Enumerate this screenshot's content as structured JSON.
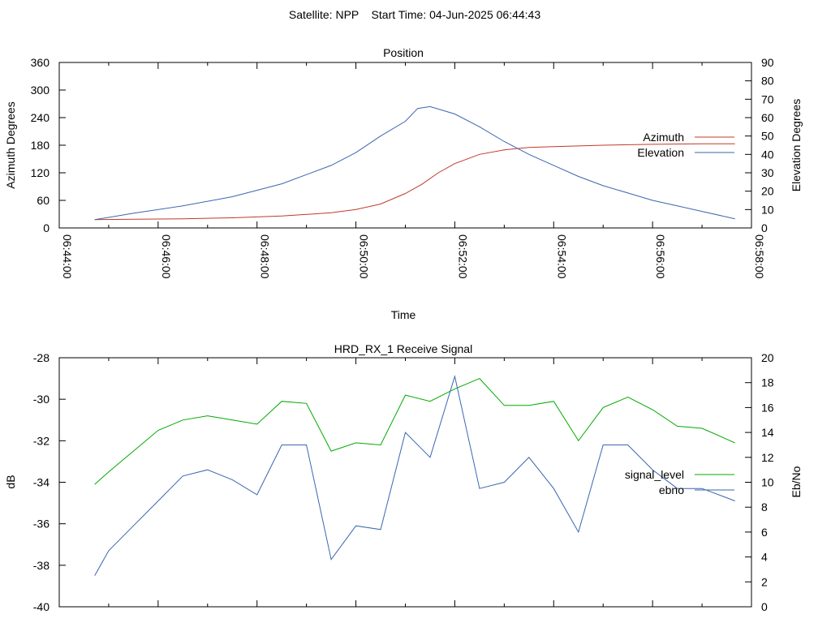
{
  "page_title": "Satellite: NPP    Start Time: 04-Jun-2025 06:44:43",
  "colors": {
    "azimuth": "#c0392b",
    "elevation": "#3a66b0",
    "signal_level": "#000000",
    "ebno": "#3a66b0",
    "signal_trace": "#00aa00"
  },
  "chart_data": [
    {
      "type": "line",
      "title": "Position",
      "xlabel": "Time",
      "ylabel": "Azimuth Degrees",
      "y2label": "Elevation Degrees",
      "xlim": [
        "06:44:00",
        "06:58:00"
      ],
      "ylim": [
        0,
        360
      ],
      "y2lim": [
        0,
        90
      ],
      "x_ticks": [
        "06:44:00",
        "06:46:00",
        "06:48:00",
        "06:50:00",
        "06:52:00",
        "06:54:00",
        "06:56:00",
        "06:58:00"
      ],
      "y_ticks": [
        0,
        60,
        120,
        180,
        240,
        300,
        360
      ],
      "y2_ticks": [
        0,
        10,
        20,
        30,
        40,
        50,
        60,
        70,
        80,
        90
      ],
      "legend_position": "right",
      "series": [
        {
          "name": "Azimuth",
          "axis": "y",
          "x": [
            "06:44:43",
            "06:45:30",
            "06:46:30",
            "06:47:30",
            "06:48:30",
            "06:49:30",
            "06:50:00",
            "06:50:30",
            "06:51:00",
            "06:51:20",
            "06:51:40",
            "06:52:00",
            "06:52:30",
            "06:53:00",
            "06:53:30",
            "06:54:00",
            "06:55:00",
            "06:56:00",
            "06:57:00",
            "06:57:40"
          ],
          "values": [
            18,
            19,
            20,
            22,
            26,
            33,
            40,
            52,
            75,
            95,
            120,
            140,
            160,
            170,
            175,
            177,
            180,
            182,
            183,
            183
          ]
        },
        {
          "name": "Elevation",
          "axis": "y2",
          "x": [
            "06:44:43",
            "06:45:30",
            "06:46:30",
            "06:47:30",
            "06:48:30",
            "06:49:30",
            "06:50:00",
            "06:50:30",
            "06:51:00",
            "06:51:15",
            "06:51:30",
            "06:52:00",
            "06:52:30",
            "06:53:00",
            "06:53:30",
            "06:54:00",
            "06:54:30",
            "06:55:00",
            "06:55:30",
            "06:56:00",
            "06:56:30",
            "06:57:00",
            "06:57:40"
          ],
          "values": [
            4.5,
            8,
            12,
            17,
            24,
            34,
            41,
            50,
            58,
            65,
            66,
            62,
            55,
            47,
            40,
            34,
            28,
            23,
            19,
            15,
            12,
            9,
            5
          ]
        }
      ]
    },
    {
      "type": "line",
      "title": "HRD_RX_1 Receive Signal",
      "ylabel": "dB",
      "y2label": "Eb/No",
      "xlim": [
        "06:44:00",
        "06:58:00"
      ],
      "ylim": [
        -40,
        -28
      ],
      "y2lim": [
        0,
        20
      ],
      "y_ticks": [
        -40,
        -38,
        -36,
        -34,
        -32,
        -30,
        -28
      ],
      "y2_ticks": [
        0,
        2,
        4,
        6,
        8,
        10,
        12,
        14,
        16,
        18,
        20
      ],
      "legend_position": "right",
      "series": [
        {
          "name": "signal_level",
          "axis": "y",
          "x": [
            "06:44:43",
            "06:45:00",
            "06:45:30",
            "06:46:00",
            "06:46:30",
            "06:47:00",
            "06:47:30",
            "06:48:00",
            "06:48:30",
            "06:49:00",
            "06:49:30",
            "06:50:00",
            "06:50:30",
            "06:51:00",
            "06:51:30",
            "06:52:00",
            "06:52:30",
            "06:53:00",
            "06:53:30",
            "06:54:00",
            "06:54:30",
            "06:55:00",
            "06:55:30",
            "06:56:00",
            "06:56:30",
            "06:57:00",
            "06:57:40"
          ],
          "values": [
            -34.1,
            -33.5,
            -32.5,
            -31.5,
            -31.0,
            -30.8,
            -31.0,
            -31.2,
            -30.1,
            -30.2,
            -32.5,
            -32.1,
            -32.2,
            -29.8,
            -30.1,
            -29.5,
            -29.0,
            -30.3,
            -30.3,
            -30.1,
            -32.0,
            -30.4,
            -29.9,
            -30.5,
            -31.3,
            -31.4,
            -32.1
          ]
        },
        {
          "name": "ebno",
          "axis": "y2",
          "x": [
            "06:44:43",
            "06:45:00",
            "06:45:30",
            "06:46:00",
            "06:46:30",
            "06:47:00",
            "06:47:30",
            "06:48:00",
            "06:48:30",
            "06:49:00",
            "06:49:30",
            "06:50:00",
            "06:50:30",
            "06:51:00",
            "06:51:30",
            "06:52:00",
            "06:52:30",
            "06:53:00",
            "06:53:30",
            "06:54:00",
            "06:54:30",
            "06:55:00",
            "06:55:30",
            "06:56:00",
            "06:56:30",
            "06:57:00",
            "06:57:40"
          ],
          "values": [
            2.5,
            4.5,
            6.5,
            8.5,
            10.5,
            11.0,
            10.2,
            9.0,
            13.0,
            13.0,
            3.8,
            6.5,
            6.2,
            14.0,
            12.0,
            18.5,
            9.5,
            10.0,
            12.0,
            9.5,
            6.0,
            13.0,
            13.0,
            11.0,
            9.5,
            9.5,
            8.5
          ]
        }
      ]
    }
  ]
}
